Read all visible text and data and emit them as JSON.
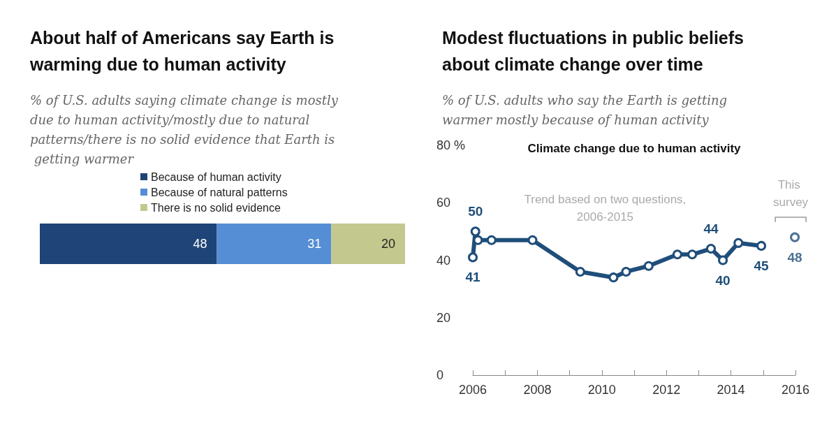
{
  "chart_data": [
    {
      "type": "bar",
      "orientation": "horizontal",
      "stacked": true,
      "title": "About half of Americans say Earth is warming due to human activity",
      "subtitle": "% of U.S. adults saying climate change is mostly due to human activity/mostly due to natural patterns/there is no solid evidence that Earth is getting warmer",
      "categories": [
        null
      ],
      "tick_labels": false,
      "data_labels": true,
      "legend": "top",
      "series": [
        {
          "name": "Because of human activity",
          "color": "#1f4477",
          "values": [
            48
          ]
        },
        {
          "name": "Because of natural patterns",
          "color": "#558ed5",
          "values": [
            31
          ]
        },
        {
          "name": "There is no solid evidence",
          "color": "#c3c88f",
          "values": [
            20
          ]
        }
      ]
    },
    {
      "type": "line",
      "title": "Modest fluctuations in public beliefs about climate change over time",
      "subtitle": "% of U.S. adults who say the Earth is getting warmer mostly because of human activity",
      "marker": "circle",
      "xlim": [
        2006,
        2016
      ],
      "xticks": [
        2006,
        {
          "value": 2007,
          "label": null
        },
        2008,
        {
          "value": 2009,
          "label": null
        },
        2010,
        {
          "value": 2011,
          "label": null
        },
        2012,
        {
          "value": 2013,
          "label": null
        },
        2014,
        {
          "value": 2015,
          "label": null
        },
        2016
      ],
      "ylim": [
        0,
        80
      ],
      "yticks": [
        0,
        20,
        40,
        60,
        {
          "value": 80,
          "label": "80 %"
        }
      ],
      "annotations": [
        "Climate change due to human activity",
        "Trend based on two questions,\n2006-2015",
        "This survey"
      ],
      "series": [
        {
          "color": "#1f4e7a",
          "x": [
            2006.0,
            2006.08,
            2006.16,
            2006.58,
            2007.85,
            2009.33,
            2010.36,
            2010.75,
            2011.45,
            2012.34,
            2012.8,
            2013.38,
            2013.75,
            2014.23,
            2014.94
          ],
          "values": [
            41,
            50,
            47,
            47,
            47,
            36,
            34,
            36,
            38,
            42,
            42,
            44,
            40,
            46,
            45
          ],
          "value_labels": [
            "41",
            "50",
            null,
            null,
            null,
            null,
            null,
            null,
            null,
            null,
            null,
            "44",
            "40",
            null,
            "45"
          ]
        },
        {
          "type": "scatter",
          "color": "#1f4e7a",
          "x": [
            2015.98
          ],
          "values": [
            48
          ],
          "value_labels": [
            "48"
          ]
        }
      ]
    }
  ]
}
